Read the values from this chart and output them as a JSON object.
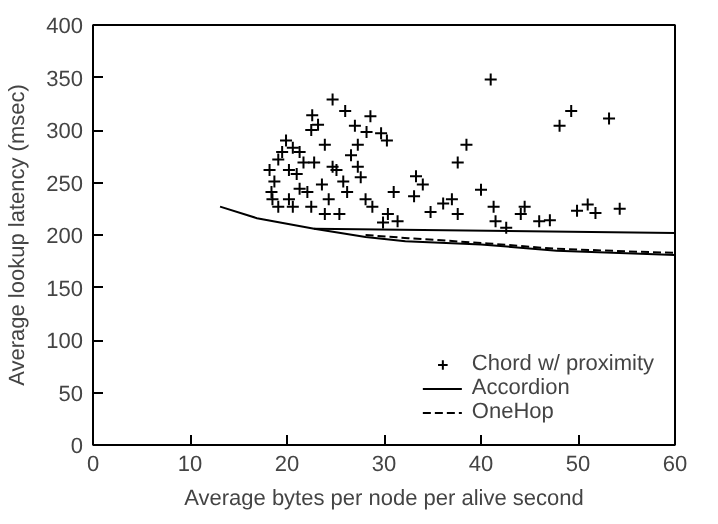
{
  "chart_data": {
    "type": "scatter",
    "xlabel": "Average bytes per node per alive second",
    "ylabel": "Average lookup latency (msec)",
    "xlim": [
      0,
      60
    ],
    "ylim": [
      0,
      400
    ],
    "xticks": [
      0,
      10,
      20,
      30,
      40,
      50,
      60
    ],
    "yticks": [
      0,
      50,
      100,
      150,
      200,
      250,
      300,
      350,
      400
    ],
    "grid": false,
    "legend": "bottom right",
    "series": [
      {
        "name": "Chord w/ proximity",
        "marker": "cross",
        "color": "#000000",
        "x": [
          41.0,
          24.7,
          26.0,
          22.6,
          28.6,
          48.1,
          49.3,
          53.2,
          38.5,
          37.6,
          40.0,
          30.3,
          29.7,
          27.0,
          28.2,
          33.3,
          34.0,
          33.1,
          36.1,
          37.0,
          37.6,
          34.8,
          31.0,
          30.4,
          29.9,
          31.4,
          41.3,
          41.5,
          42.6,
          44.5,
          44.1,
          46.0,
          47.1,
          49.9,
          51.0,
          51.8,
          54.3,
          18.2,
          18.4,
          19.1,
          19.9,
          20.6,
          21.3,
          22.1,
          22.8,
          23.6,
          24.3,
          25.1,
          25.4,
          26.2,
          26.6,
          27.3,
          27.6,
          28.1,
          28.8,
          27.3,
          23.9,
          23.2,
          22.5,
          19.5,
          18.7,
          20.2,
          21.0,
          21.7,
          22.5,
          23.9,
          24.7,
          25.8,
          19.1,
          20.2,
          21.3,
          18.5,
          20.6
        ],
        "values": [
          348,
          329,
          318,
          314,
          313,
          304,
          318,
          311,
          286,
          269,
          243,
          290,
          297,
          304,
          298,
          256,
          248,
          237,
          230,
          234,
          220,
          222,
          241,
          220,
          212,
          213,
          227,
          213,
          207,
          227,
          220,
          213,
          214,
          223,
          229,
          221,
          225,
          262,
          241,
          227,
          290,
          283,
          279,
          241,
          269,
          248,
          234,
          262,
          220,
          241,
          276,
          286,
          255,
          234,
          227,
          265,
          286,
          305,
          300,
          279,
          251,
          234,
          258,
          269,
          227,
          220,
          265,
          251,
          272,
          262,
          244,
          234,
          227
        ]
      },
      {
        "name": "Accordion",
        "type": "line",
        "marker": "none",
        "line_style": "solid",
        "color": "#000000",
        "x": [
          13.1,
          16.9,
          22.8,
          28.1,
          32.2,
          40.0,
          47.8,
          60.0
        ],
        "values": [
          227,
          216,
          206,
          198,
          194,
          191,
          185,
          181
        ]
      },
      {
        "name": "OneHop",
        "type": "line",
        "marker": "none",
        "line_style": "dashed",
        "color": "#000000",
        "x": [
          28.1,
          32.5,
          40.7,
          47.5,
          56.4,
          60.0
        ],
        "values": [
          200,
          197,
          192,
          187,
          184,
          183
        ]
      },
      {
        "type": "line",
        "marker": "none",
        "line_style": "solid",
        "color": "#000000",
        "x": [
          22.8,
          60.0
        ],
        "values": [
          206,
          202
        ]
      }
    ]
  }
}
